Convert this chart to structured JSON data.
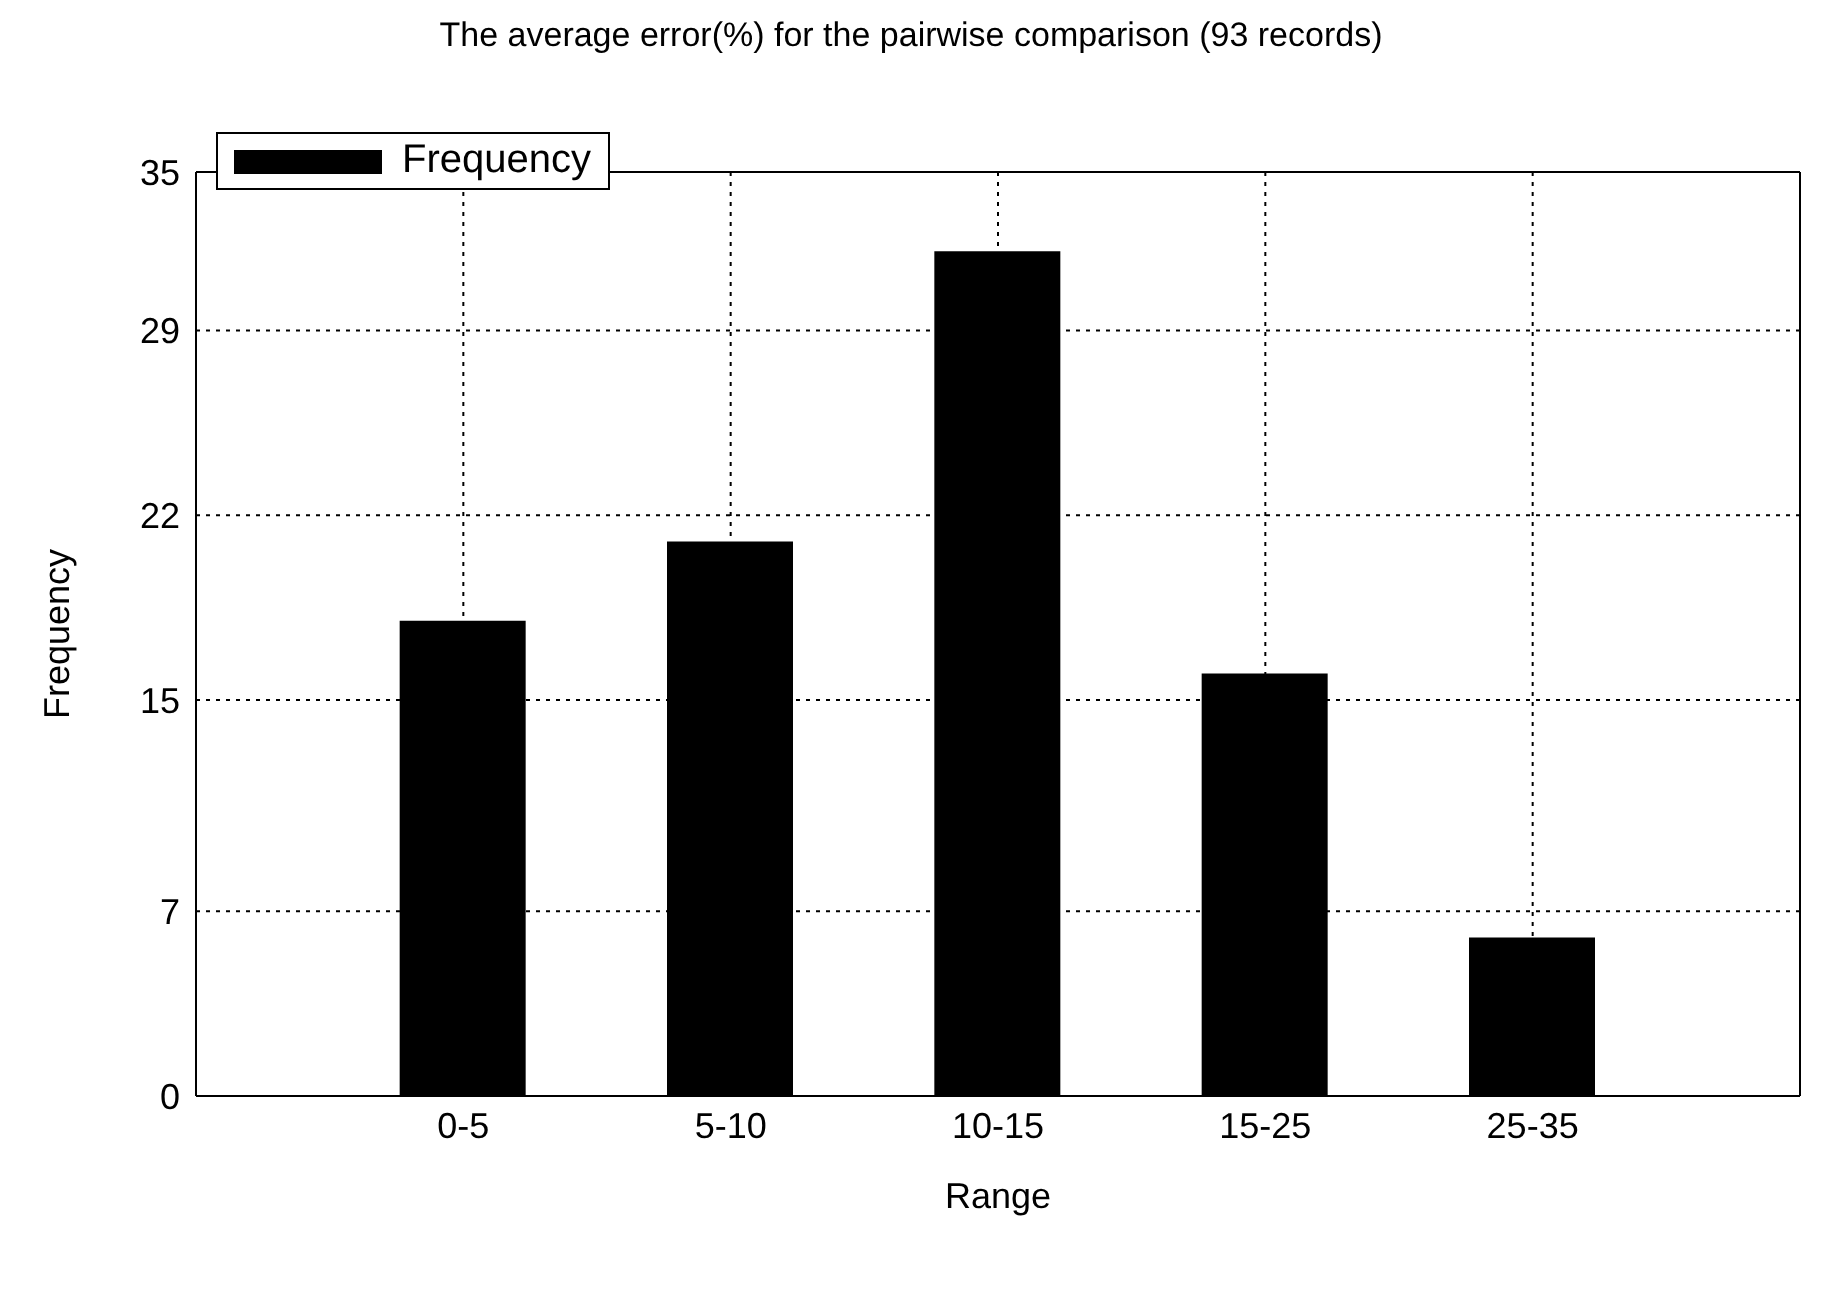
{
  "chart_data": {
    "type": "bar",
    "title": "The average error(%) for the pairwise comparison (93 records)",
    "xlabel": "Range",
    "ylabel": "Frequency",
    "categories": [
      "0-5",
      "5-10",
      "10-15",
      "15-25",
      "25-35"
    ],
    "series": [
      {
        "name": "Frequency",
        "color": "#000000",
        "values": [
          18,
          21,
          32,
          16,
          6
        ]
      }
    ],
    "ylim": [
      0,
      35
    ],
    "yticks": [
      0,
      7,
      15,
      22,
      29,
      35
    ],
    "grid": true,
    "legend": "top left"
  }
}
